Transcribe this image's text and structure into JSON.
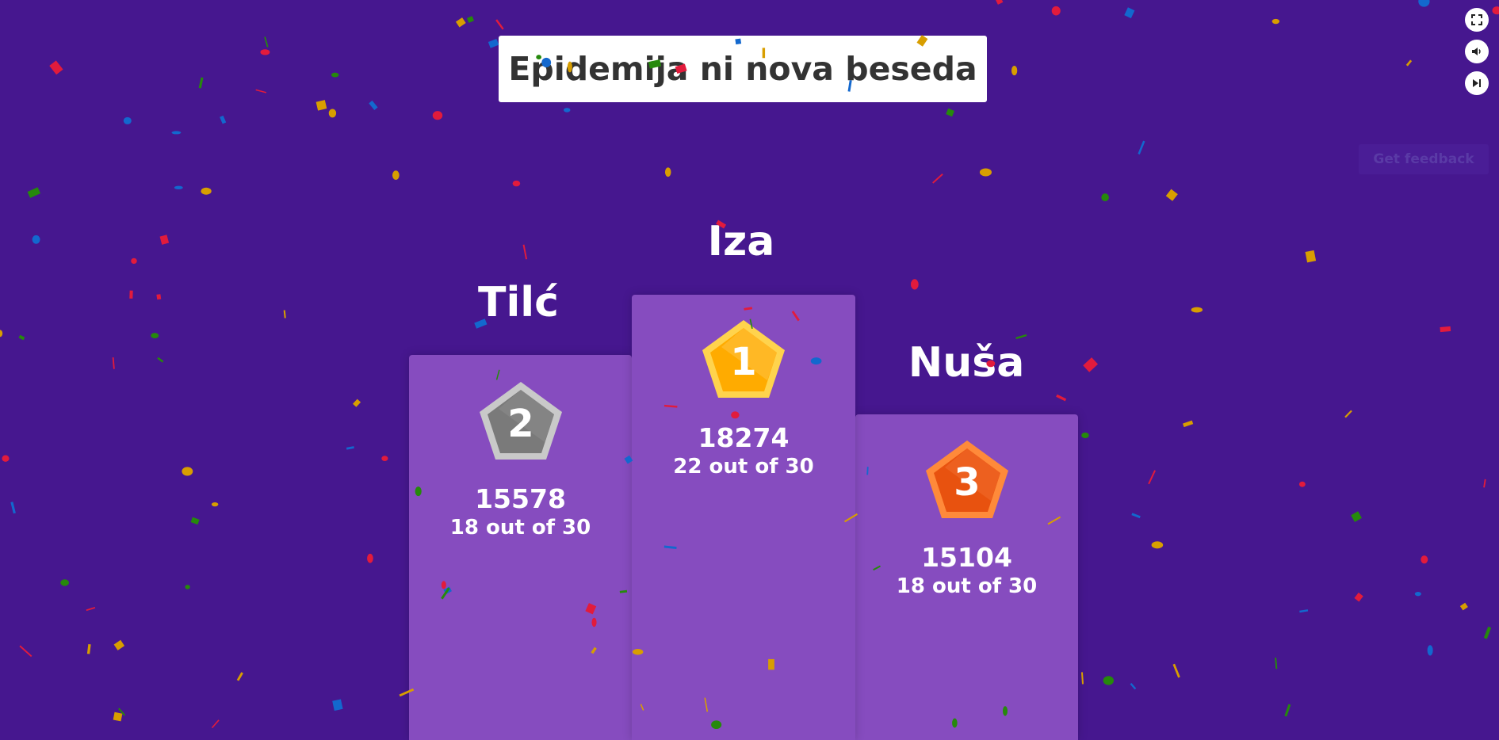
{
  "quiz": {
    "title": "Epidemija ni nova beseda"
  },
  "controls": {
    "fullscreen_icon": "fullscreen-icon",
    "sound_icon": "speaker-icon",
    "skip_icon": "skip-next-icon"
  },
  "feedback": {
    "label": "Get feedback"
  },
  "podium": [
    {
      "rank": "1",
      "name": "Iza",
      "score": "18274",
      "correct": "22 out of 30",
      "medal": "gold"
    },
    {
      "rank": "2",
      "name": "Tilć",
      "score": "15578",
      "correct": "18 out of 30",
      "medal": "silver"
    },
    {
      "rank": "3",
      "name": "Nuša",
      "score": "15104",
      "correct": "18 out of 30",
      "medal": "bronze"
    }
  ],
  "colors": {
    "background": "#46178f",
    "podium": "#864cbf",
    "gold": "#ffb020",
    "silver": "#7a7a7a",
    "bronze": "#e8520f",
    "confetti": [
      "#e21b3c",
      "#1368ce",
      "#d89e00",
      "#26890c"
    ]
  }
}
